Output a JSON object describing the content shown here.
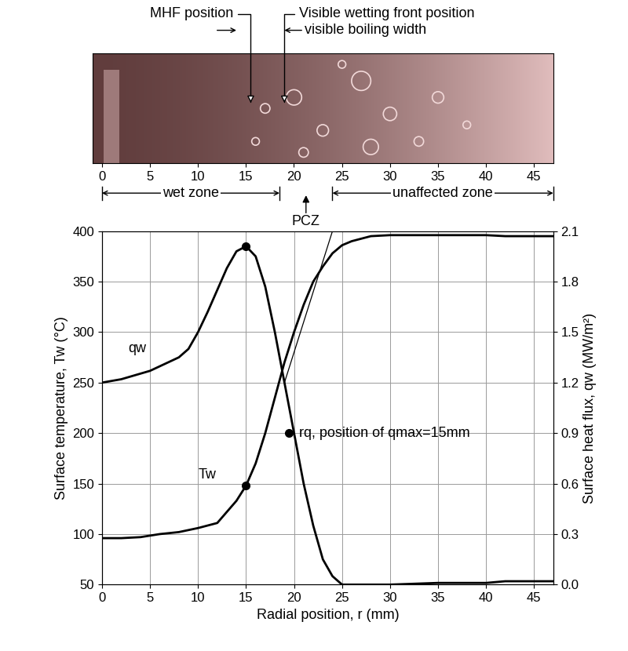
{
  "photo": {
    "scale": {
      "xlim": [
        -1,
        47
      ],
      "xticks": [
        0,
        5,
        10,
        15,
        20,
        25,
        30,
        35,
        40,
        45
      ]
    },
    "pointers": [
      {
        "text": "MHF position",
        "x": 15.5
      },
      {
        "text": "Visible wetting front position",
        "x": 19
      }
    ],
    "width_marker": {
      "text": "visible boiling width",
      "from": 14,
      "to": 19
    },
    "zones": [
      {
        "label": "wet zone",
        "from": 0,
        "to": 18.5
      },
      {
        "label": "PCZ",
        "x": 21.25
      },
      {
        "label": "unaffected zone",
        "from": 24,
        "to": 47
      }
    ]
  },
  "chart_data": {
    "type": "line",
    "x_label": "Radial position, r (mm)",
    "y_label": "Surface temperature, Tw (°C)",
    "y2_label": "Surface heat flux, qw (MW/m²)",
    "xlim": [
      0,
      47
    ],
    "xticks": [
      0,
      5,
      10,
      15,
      20,
      25,
      30,
      35,
      40,
      45
    ],
    "ylim": [
      50,
      400
    ],
    "yticks": [
      50,
      100,
      150,
      200,
      250,
      300,
      350,
      400
    ],
    "y2lim": [
      0.0,
      2.1
    ],
    "y2ticks": [
      0.0,
      0.3,
      0.6,
      0.9,
      1.2,
      1.5,
      1.8,
      2.1
    ],
    "grid": true,
    "series": [
      {
        "name": "Tw",
        "color": "#000000",
        "x": [
          0,
          2,
          4,
          6,
          8,
          10,
          12,
          13,
          14,
          15,
          16,
          17,
          18,
          19,
          20,
          21,
          22,
          23,
          24,
          25,
          26,
          28,
          30,
          35,
          40,
          42,
          45,
          47
        ],
        "values": [
          96,
          96,
          97,
          100,
          102,
          106,
          111,
          122,
          133,
          148,
          170,
          200,
          235,
          270,
          300,
          327,
          350,
          365,
          378,
          386,
          390,
          395,
          396,
          396,
          396,
          395,
          395,
          395
        ]
      },
      {
        "name": "qw",
        "axis": "y2",
        "color": "#000000",
        "x": [
          0,
          2,
          5,
          8,
          9,
          10,
          11,
          12,
          13,
          14,
          15,
          16,
          17,
          18,
          19,
          20,
          21,
          22,
          23,
          24,
          25,
          30,
          35,
          40,
          42,
          47
        ],
        "values": [
          1.2,
          1.22,
          1.27,
          1.35,
          1.4,
          1.5,
          1.62,
          1.75,
          1.88,
          1.98,
          2.01,
          1.95,
          1.77,
          1.5,
          1.2,
          0.9,
          0.6,
          0.35,
          0.15,
          0.05,
          0.0,
          0.0,
          0.01,
          0.01,
          0.02,
          0.02
        ]
      },
      {
        "color": "#000000",
        "x": [
          19,
          24
        ],
        "values": [
          250,
          400
        ]
      }
    ],
    "points": [
      {
        "x": 15,
        "y": 148
      },
      {
        "x": 15,
        "y": 2.01,
        "axis": "y2"
      }
    ],
    "annotations": [
      {
        "text": "rq, position of qmax=15mm",
        "x": 19.5,
        "y": 200
      }
    ]
  }
}
